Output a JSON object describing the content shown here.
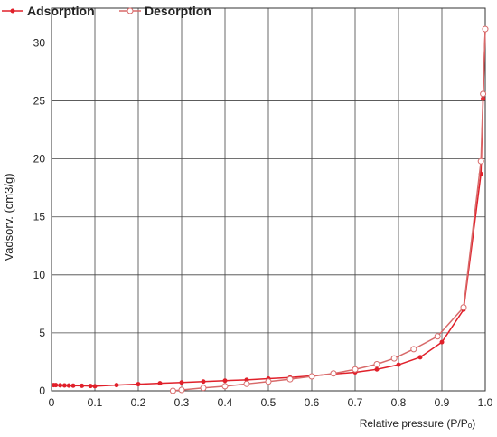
{
  "chart_data": {
    "type": "line",
    "x_label": "Relative pressure (P/Pₒ)",
    "y_label": "Vadsorv. (cm3/g)",
    "xlim": [
      0,
      1.0
    ],
    "ylim": [
      0,
      33
    ],
    "xticks": [
      0,
      0.1,
      0.2,
      0.3,
      0.4,
      0.5,
      0.6,
      0.7,
      0.8,
      0.9,
      {
        "value": 1.0,
        "label": "1.0"
      }
    ],
    "yticks": [
      0,
      5,
      10,
      15,
      20,
      25,
      30
    ],
    "grid": true,
    "legend": "top-left",
    "series": [
      {
        "name": "Adsorption",
        "color": "#e0202a",
        "marker": "filled",
        "x": [
          0.005,
          0.01,
          0.02,
          0.03,
          0.04,
          0.05,
          0.07,
          0.09,
          0.1,
          0.15,
          0.2,
          0.25,
          0.3,
          0.35,
          0.4,
          0.45,
          0.5,
          0.55,
          0.6,
          0.65,
          0.7,
          0.75,
          0.8,
          0.85,
          0.9,
          0.95,
          0.99,
          0.995,
          1.0
        ],
        "values": [
          0.5,
          0.5,
          0.48,
          0.47,
          0.46,
          0.45,
          0.44,
          0.42,
          0.4,
          0.5,
          0.58,
          0.65,
          0.72,
          0.8,
          0.88,
          0.95,
          1.05,
          1.15,
          1.3,
          1.45,
          1.6,
          1.85,
          2.25,
          2.9,
          4.2,
          7.0,
          18.7,
          25.2,
          31.2
        ]
      },
      {
        "name": "Desorption",
        "color": "#d86a6a",
        "marker": "open",
        "x": [
          1.0,
          0.995,
          0.99,
          0.95,
          0.89,
          0.835,
          0.79,
          0.75,
          0.7,
          0.65,
          0.6,
          0.55,
          0.5,
          0.45,
          0.4,
          0.35,
          0.3,
          0.28
        ],
        "values": [
          31.2,
          25.6,
          19.8,
          7.2,
          4.7,
          3.6,
          2.8,
          2.3,
          1.85,
          1.5,
          1.25,
          1.0,
          0.8,
          0.6,
          0.4,
          0.25,
          0.08,
          0.0
        ]
      }
    ]
  }
}
